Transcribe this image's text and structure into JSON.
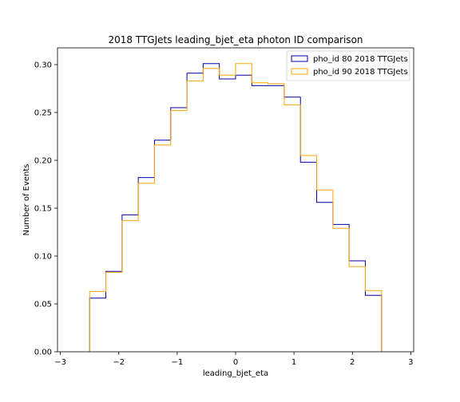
{
  "chart_data": {
    "type": "histogram-step",
    "title": "2018 TTGJets leading_bjet_eta photon ID comparison",
    "xlabel": "leading_bjet_eta",
    "ylabel": "Number of Events",
    "xlim": [
      -3.05,
      3.05
    ],
    "ylim": [
      0,
      0.3175
    ],
    "xticks": [
      -3,
      -2,
      -1,
      0,
      1,
      2,
      3
    ],
    "xtick_labels": [
      "−3",
      "−2",
      "−1",
      "0",
      "1",
      "2",
      "3"
    ],
    "yticks": [
      0.0,
      0.05,
      0.1,
      0.15,
      0.2,
      0.25,
      0.3
    ],
    "ytick_labels": [
      "0.00",
      "0.05",
      "0.10",
      "0.15",
      "0.20",
      "0.25",
      "0.30"
    ],
    "bin_edges": [
      -2.5,
      -2.222,
      -1.944,
      -1.667,
      -1.389,
      -1.111,
      -0.833,
      -0.556,
      -0.278,
      0.0,
      0.278,
      0.556,
      0.833,
      1.111,
      1.389,
      1.667,
      1.944,
      2.222,
      2.5
    ],
    "grid": false,
    "legend_position": "top-right",
    "series": [
      {
        "name": "pho_id 80 2018 TTGJets",
        "color": "#0000aa",
        "values": [
          0.056,
          0.084,
          0.143,
          0.182,
          0.221,
          0.255,
          0.291,
          0.301,
          0.285,
          0.289,
          0.278,
          0.278,
          0.266,
          0.198,
          0.156,
          0.133,
          0.095,
          0.059
        ]
      },
      {
        "name": "pho_id 90 2018 TTGJets",
        "color": "#ffa500",
        "values": [
          0.063,
          0.083,
          0.137,
          0.176,
          0.216,
          0.252,
          0.283,
          0.296,
          0.289,
          0.301,
          0.281,
          0.28,
          0.258,
          0.205,
          0.169,
          0.129,
          0.089,
          0.064
        ]
      }
    ]
  }
}
